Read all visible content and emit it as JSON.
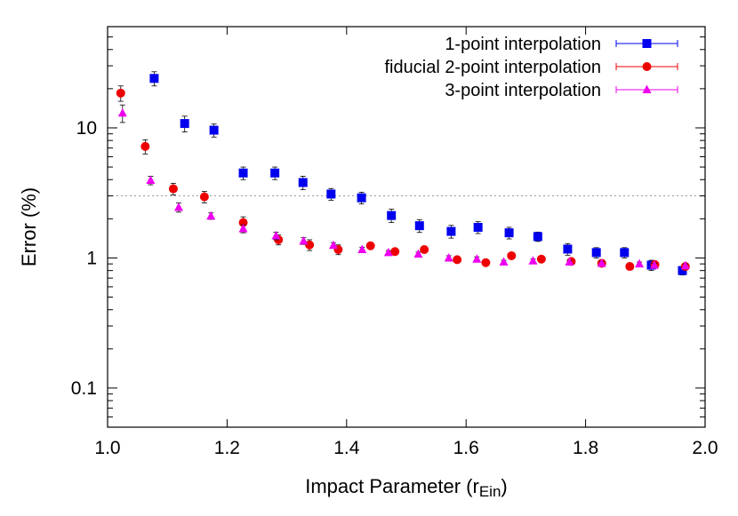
{
  "chart_data": {
    "type": "scatter",
    "title": "",
    "xlabel_main": "Impact Parameter (r",
    "xlabel_sub": "Ein",
    "xlabel_close": ")",
    "ylabel": "Error (%)",
    "xlim": [
      1.0,
      2.0
    ],
    "ylim": [
      0.05,
      60
    ],
    "yscale": "log",
    "xticks": [
      1.0,
      1.2,
      1.4,
      1.6,
      1.8,
      2.0
    ],
    "xtick_labels": [
      "1.0",
      "1.2",
      "1.4",
      "1.6",
      "1.8",
      "2.0"
    ],
    "yticks": [
      0.1,
      1,
      10
    ],
    "ytick_labels": [
      "0.1",
      "1",
      "10"
    ],
    "reference_line": 3.0,
    "legend_position": "top-right",
    "series": [
      {
        "name": "1-point interpolation",
        "color": "#0000ee",
        "marker": "square",
        "points": [
          {
            "x": 1.078,
            "y": 24.0,
            "err": 3.0
          },
          {
            "x": 1.129,
            "y": 10.8,
            "err": 1.5
          },
          {
            "x": 1.178,
            "y": 9.6,
            "err": 1.1
          },
          {
            "x": 1.227,
            "y": 4.5,
            "err": 0.5
          },
          {
            "x": 1.28,
            "y": 4.5,
            "err": 0.5
          },
          {
            "x": 1.327,
            "y": 3.8,
            "err": 0.45
          },
          {
            "x": 1.374,
            "y": 3.1,
            "err": 0.32
          },
          {
            "x": 1.425,
            "y": 2.9,
            "err": 0.3
          },
          {
            "x": 1.475,
            "y": 2.12,
            "err": 0.25
          },
          {
            "x": 1.522,
            "y": 1.77,
            "err": 0.2
          },
          {
            "x": 1.575,
            "y": 1.6,
            "err": 0.18
          },
          {
            "x": 1.62,
            "y": 1.72,
            "err": 0.18
          },
          {
            "x": 1.672,
            "y": 1.56,
            "err": 0.16
          },
          {
            "x": 1.72,
            "y": 1.46,
            "err": 0.12
          },
          {
            "x": 1.77,
            "y": 1.17,
            "err": 0.12
          },
          {
            "x": 1.818,
            "y": 1.1,
            "err": 0.1
          },
          {
            "x": 1.865,
            "y": 1.1,
            "err": 0.1
          },
          {
            "x": 1.91,
            "y": 0.88,
            "err": 0.08
          },
          {
            "x": 1.962,
            "y": 0.8,
            "err": 0.06
          }
        ]
      },
      {
        "name": "fiducial 2-point interpolation",
        "color": "#ee0000",
        "marker": "circle",
        "points": [
          {
            "x": 1.022,
            "y": 18.5,
            "err": 2.5
          },
          {
            "x": 1.063,
            "y": 7.2,
            "err": 0.9
          },
          {
            "x": 1.11,
            "y": 3.4,
            "err": 0.35
          },
          {
            "x": 1.162,
            "y": 2.95,
            "err": 0.3
          },
          {
            "x": 1.227,
            "y": 1.87,
            "err": 0.2
          },
          {
            "x": 1.286,
            "y": 1.38,
            "err": 0.12
          },
          {
            "x": 1.338,
            "y": 1.26,
            "err": 0.12
          },
          {
            "x": 1.386,
            "y": 1.16,
            "err": 0.1
          },
          {
            "x": 1.44,
            "y": 1.24,
            "err": 0.06
          },
          {
            "x": 1.481,
            "y": 1.12,
            "err": 0.05
          },
          {
            "x": 1.53,
            "y": 1.16,
            "err": 0.05
          },
          {
            "x": 1.585,
            "y": 0.97,
            "err": 0.04
          },
          {
            "x": 1.633,
            "y": 0.92,
            "err": 0.03
          },
          {
            "x": 1.676,
            "y": 1.04,
            "err": 0.04
          },
          {
            "x": 1.726,
            "y": 0.98,
            "err": 0.04
          },
          {
            "x": 1.776,
            "y": 0.94,
            "err": 0.03
          },
          {
            "x": 1.827,
            "y": 0.91,
            "err": 0.03
          },
          {
            "x": 1.874,
            "y": 0.86,
            "err": 0.03
          },
          {
            "x": 1.916,
            "y": 0.89,
            "err": 0.03
          },
          {
            "x": 1.967,
            "y": 0.86,
            "err": 0.03
          }
        ]
      },
      {
        "name": "3-point interpolation",
        "color": "#ee00ee",
        "marker": "triangle",
        "points": [
          {
            "x": 1.025,
            "y": 13.0,
            "err": 2.0
          },
          {
            "x": 1.072,
            "y": 3.95,
            "err": 0.3
          },
          {
            "x": 1.119,
            "y": 2.45,
            "err": 0.2
          },
          {
            "x": 1.173,
            "y": 2.1,
            "err": 0.12
          },
          {
            "x": 1.227,
            "y": 1.68,
            "err": 0.12
          },
          {
            "x": 1.282,
            "y": 1.48,
            "err": 0.1
          },
          {
            "x": 1.328,
            "y": 1.35,
            "err": 0.08
          },
          {
            "x": 1.378,
            "y": 1.25,
            "err": 0.06
          },
          {
            "x": 1.426,
            "y": 1.16,
            "err": 0.05
          },
          {
            "x": 1.47,
            "y": 1.1,
            "err": 0.04
          },
          {
            "x": 1.52,
            "y": 1.07,
            "err": 0.04
          },
          {
            "x": 1.571,
            "y": 1.0,
            "err": 0.04
          },
          {
            "x": 1.618,
            "y": 0.98,
            "err": 0.04
          },
          {
            "x": 1.663,
            "y": 0.93,
            "err": 0.03
          },
          {
            "x": 1.712,
            "y": 0.95,
            "err": 0.03
          },
          {
            "x": 1.773,
            "y": 0.93,
            "err": 0.03
          },
          {
            "x": 1.827,
            "y": 0.91,
            "err": 0.03
          },
          {
            "x": 1.89,
            "y": 0.9,
            "err": 0.03
          },
          {
            "x": 1.915,
            "y": 0.88,
            "err": 0.03
          },
          {
            "x": 1.967,
            "y": 0.87,
            "err": 0.03
          }
        ]
      }
    ]
  }
}
